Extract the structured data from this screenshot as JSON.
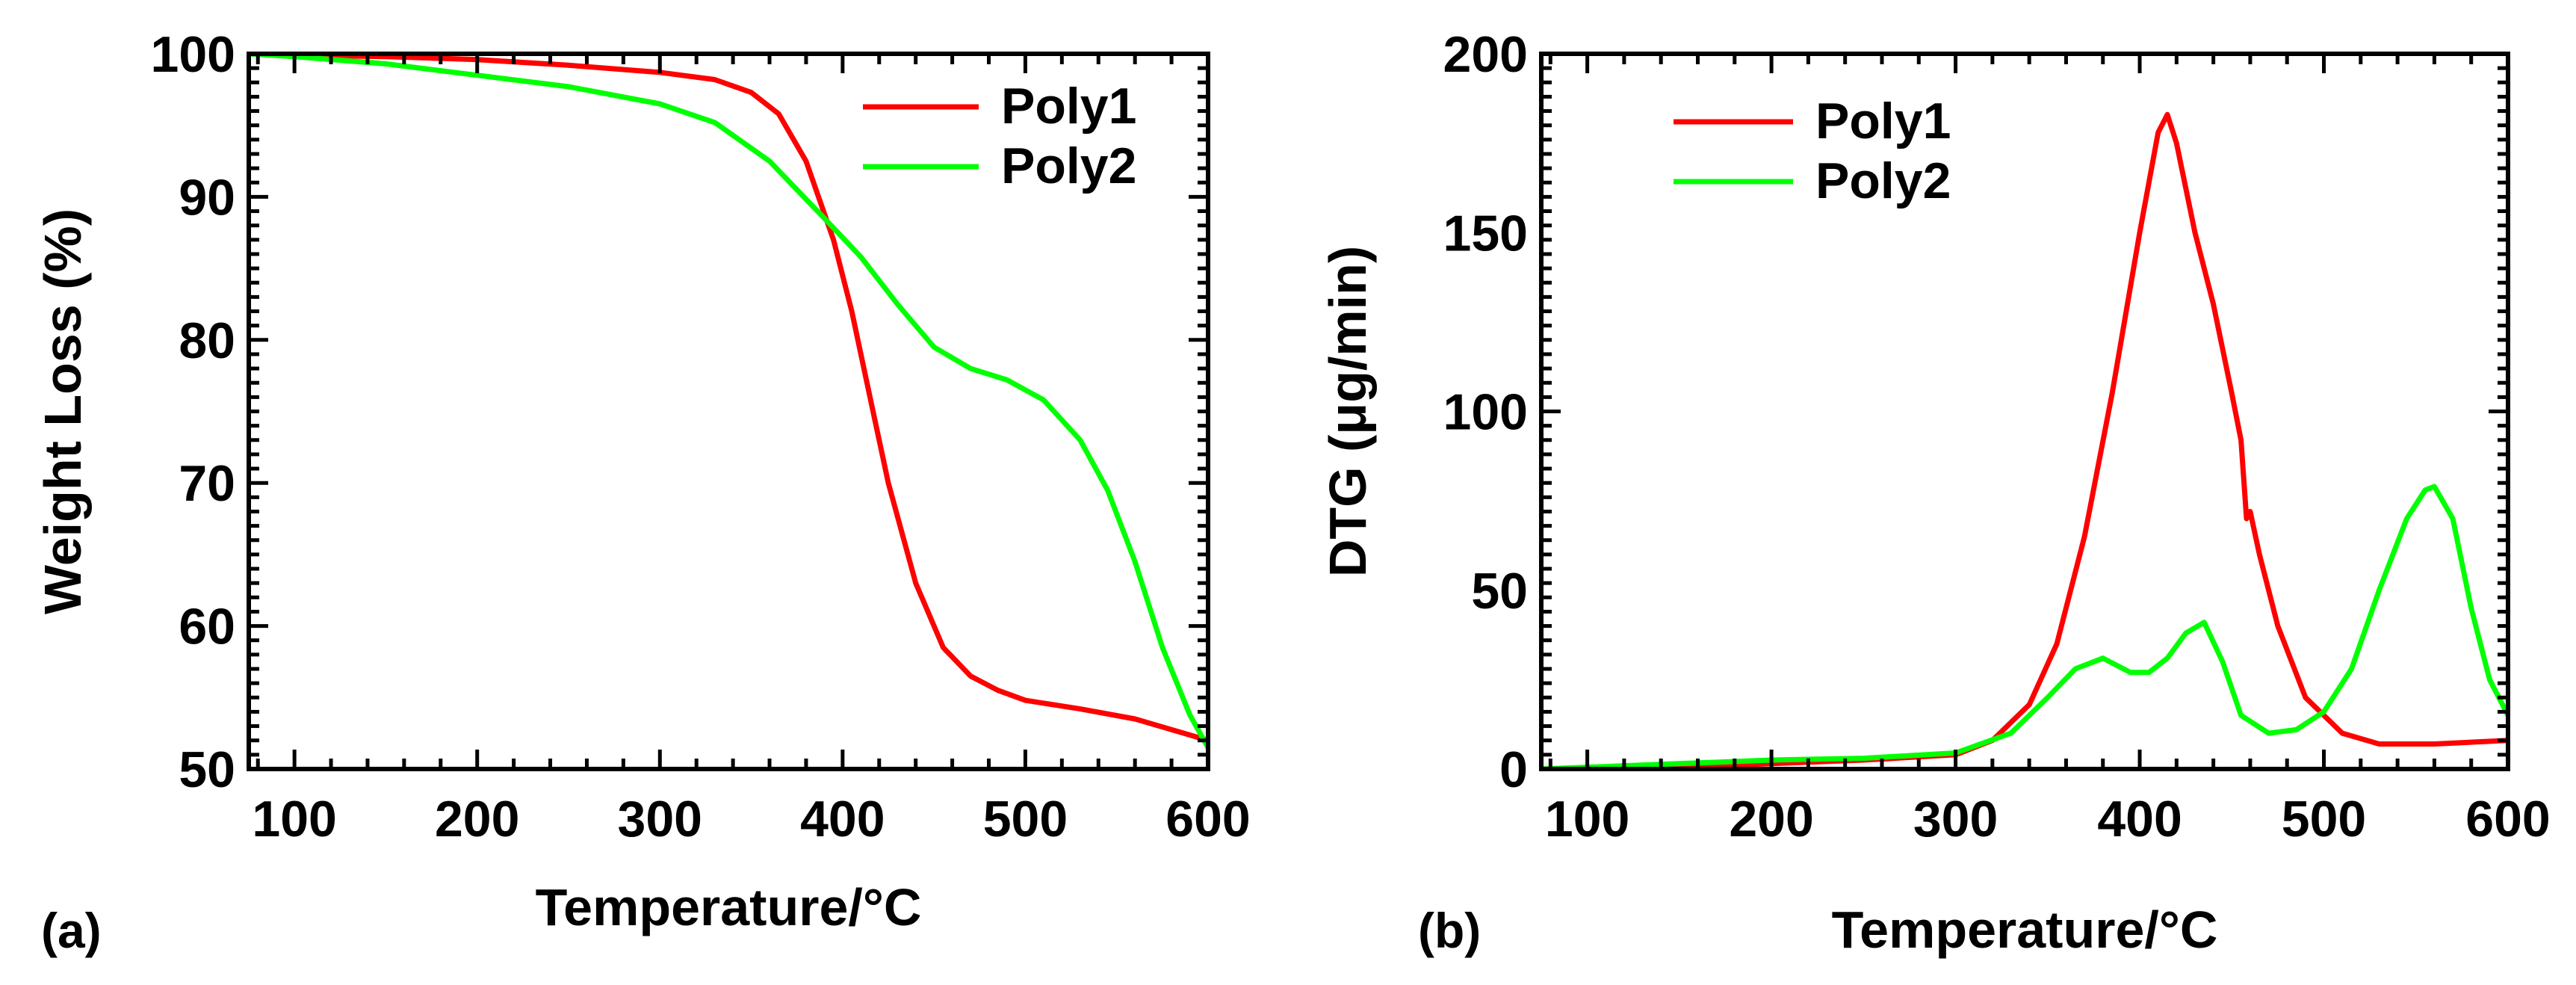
{
  "chart_data": [
    {
      "type": "line",
      "panel": "a",
      "panel_label": "(a)",
      "xlabel": "Temperature/°C",
      "ylabel": "Weight Loss (%)",
      "xlim": [
        75,
        600
      ],
      "ylim": [
        50,
        100
      ],
      "xticks": [
        100,
        200,
        300,
        400,
        500,
        600
      ],
      "yticks": [
        50,
        60,
        70,
        80,
        90,
        100
      ],
      "legend_position": "top-right",
      "series": [
        {
          "name": "Poly1",
          "color": "#ff0000",
          "x": [
            75,
            100,
            150,
            200,
            250,
            300,
            330,
            350,
            365,
            380,
            395,
            405,
            415,
            425,
            440,
            455,
            470,
            485,
            500,
            530,
            560,
            600
          ],
          "y": [
            100,
            99.9,
            99.8,
            99.6,
            99.2,
            98.7,
            98.2,
            97.3,
            95.8,
            92.5,
            87,
            82,
            76,
            70,
            63,
            58.5,
            56.5,
            55.5,
            54.8,
            54.2,
            53.5,
            52
          ]
        },
        {
          "name": "Poly2",
          "color": "#00ff00",
          "x": [
            75,
            100,
            150,
            200,
            250,
            300,
            330,
            360,
            390,
            410,
            430,
            450,
            470,
            490,
            510,
            530,
            545,
            560,
            575,
            590,
            600
          ],
          "y": [
            100,
            99.8,
            99.3,
            98.5,
            97.7,
            96.5,
            95.2,
            92.5,
            88.5,
            85.8,
            82.5,
            79.5,
            78,
            77.2,
            75.8,
            73,
            69.5,
            64.5,
            58.5,
            53.8,
            51.5
          ]
        }
      ]
    },
    {
      "type": "line",
      "panel": "b",
      "panel_label": "(b)",
      "xlabel": "Temperature/°C",
      "ylabel": "DTG (μg/min)",
      "xlim": [
        75,
        600
      ],
      "ylim": [
        0,
        200
      ],
      "xticks": [
        100,
        200,
        300,
        400,
        500,
        600
      ],
      "yticks": [
        0,
        50,
        100,
        150,
        200
      ],
      "legend_position": "top-left",
      "series": [
        {
          "name": "Poly1",
          "color": "#ff0000",
          "x": [
            75,
            150,
            200,
            250,
            300,
            320,
            340,
            355,
            370,
            385,
            400,
            410,
            415,
            420,
            430,
            440,
            450,
            455,
            458,
            460,
            465,
            475,
            490,
            510,
            530,
            560,
            600
          ],
          "y": [
            0,
            0.5,
            1.5,
            2.5,
            4,
            8,
            18,
            35,
            65,
            105,
            150,
            178,
            183,
            175,
            150,
            130,
            105,
            92,
            70,
            72,
            60,
            40,
            20,
            10,
            7,
            7,
            8
          ]
        },
        {
          "name": "Poly2",
          "color": "#00ff00",
          "x": [
            75,
            150,
            200,
            250,
            300,
            330,
            350,
            365,
            380,
            395,
            405,
            415,
            425,
            435,
            445,
            455,
            470,
            485,
            500,
            515,
            530,
            545,
            555,
            560,
            570,
            580,
            590,
            600
          ],
          "y": [
            0,
            1.5,
            2.5,
            3,
            4.5,
            10,
            20,
            28,
            31,
            27,
            27,
            31,
            38,
            41,
            30,
            15,
            10,
            11,
            16,
            28,
            50,
            70,
            78,
            79,
            70,
            45,
            25,
            15
          ]
        }
      ]
    }
  ]
}
